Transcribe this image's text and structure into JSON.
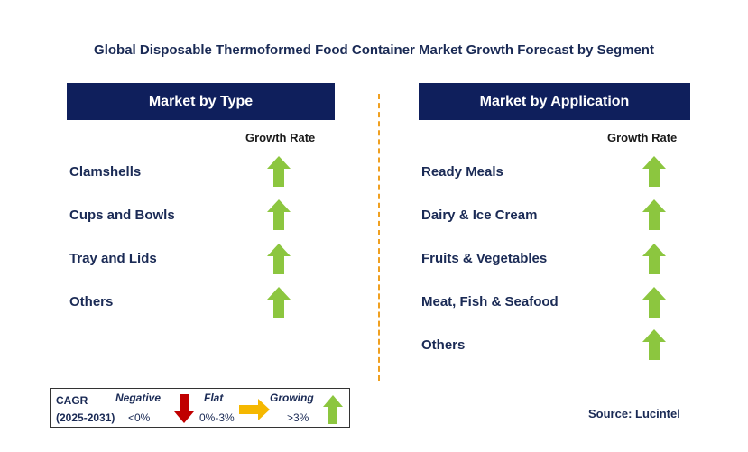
{
  "title": "Global Disposable Thermoformed Food Container Market Growth Forecast by Segment",
  "left_panel": {
    "header": "Market by Type",
    "growth_label": "Growth Rate",
    "rows": [
      "Clamshells",
      "Cups and Bowls",
      "Tray and Lids",
      "Others"
    ]
  },
  "right_panel": {
    "header": "Market by Application",
    "growth_label": "Growth Rate",
    "rows": [
      "Ready Meals",
      "Dairy & Ice Cream",
      "Fruits & Vegetables",
      "Meat, Fish & Seafood",
      "Others"
    ]
  },
  "legend": {
    "cagr": "CAGR",
    "period": "(2025-2031)",
    "negative_label": "Negative",
    "negative_value": "<0%",
    "flat_label": "Flat",
    "flat_value": "0%-3%",
    "growing_label": "Growing",
    "growing_value": ">3%"
  },
  "source": "Source: Lucintel",
  "colors": {
    "header_bg": "#0f1f5c",
    "arrow_up": "#8cc63f",
    "arrow_down": "#c00000",
    "arrow_flat": "#f5b800",
    "divider": "#f0a020"
  },
  "icons": {
    "row_indicator": "up-arrow-icon",
    "negative": "down-arrow-icon",
    "flat": "right-arrow-icon",
    "growing": "up-arrow-icon"
  }
}
